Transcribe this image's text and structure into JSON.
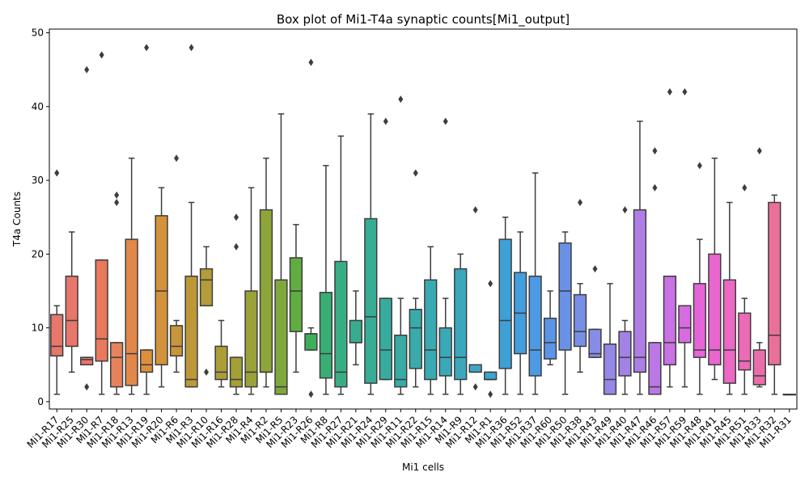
{
  "chart_data": {
    "type": "box",
    "title": "Box plot of Mi1-T4a synaptic counts[Mi1_output]",
    "xlabel": "Mi1 cells",
    "ylabel": "T4a Counts",
    "ylim": [
      -1,
      50.5
    ],
    "yticks": [
      0,
      10,
      20,
      30,
      40,
      50
    ],
    "grid": false,
    "legend": "none",
    "boxes": [
      {
        "category": "Mi1-R17",
        "color": "#e8766b",
        "min": 1,
        "q1": 6.2,
        "median": 7.5,
        "q3": 11.8,
        "max": 13,
        "outliers": [
          31
        ]
      },
      {
        "category": "Mi1-R25",
        "color": "#e8766b",
        "min": 4,
        "q1": 7.5,
        "median": 11,
        "q3": 17,
        "max": 23,
        "outliers": []
      },
      {
        "category": "Mi1-R30",
        "color": "#e8766b",
        "min": 5,
        "q1": 5,
        "median": 5.7,
        "q3": 6,
        "max": 6,
        "outliers": [
          2,
          45
        ]
      },
      {
        "category": "Mi1-R7",
        "color": "#e8795c",
        "min": 1,
        "q1": 5.5,
        "median": 8.5,
        "q3": 19.2,
        "max": 19.2,
        "outliers": [
          47
        ]
      },
      {
        "category": "Mi1-R18",
        "color": "#e7825c",
        "min": 1,
        "q1": 2,
        "median": 6,
        "q3": 8,
        "max": 8,
        "outliers": [
          27,
          28
        ]
      },
      {
        "category": "Mi1-R13",
        "color": "#e2884a",
        "min": 1,
        "q1": 2.2,
        "median": 6.5,
        "q3": 22,
        "max": 33,
        "outliers": []
      },
      {
        "category": "Mi1-R19",
        "color": "#dc8f3d",
        "min": 1,
        "q1": 4,
        "median": 5,
        "q3": 7,
        "max": 7,
        "outliers": [
          48
        ]
      },
      {
        "category": "Mi1-R20",
        "color": "#d3923c",
        "min": 2,
        "q1": 5,
        "median": 15,
        "q3": 25.2,
        "max": 29,
        "outliers": []
      },
      {
        "category": "Mi1-R6",
        "color": "#c7963b",
        "min": 4,
        "q1": 6.2,
        "median": 7.5,
        "q3": 10.3,
        "max": 11,
        "outliers": [
          33
        ]
      },
      {
        "category": "Mi1-R3",
        "color": "#bc9839",
        "min": 2,
        "q1": 2,
        "median": 3,
        "q3": 17,
        "max": 27,
        "outliers": [
          48
        ]
      },
      {
        "category": "Mi1-R10",
        "color": "#b39c39",
        "min": 13,
        "q1": 13,
        "median": 16.5,
        "q3": 18,
        "max": 21,
        "outliers": [
          4
        ]
      },
      {
        "category": "Mi1-R16",
        "color": "#ab9d38",
        "min": 2,
        "q1": 3,
        "median": 4,
        "q3": 7.5,
        "max": 11,
        "outliers": []
      },
      {
        "category": "Mi1-R28",
        "color": "#a49f37",
        "min": 1,
        "q1": 2,
        "median": 3,
        "q3": 6,
        "max": 6,
        "outliers": [
          21,
          25
        ]
      },
      {
        "category": "Mi1-R4",
        "color": "#9aa138",
        "min": 1,
        "q1": 2,
        "median": 4,
        "q3": 15,
        "max": 29,
        "outliers": []
      },
      {
        "category": "Mi1-R2",
        "color": "#8ea539",
        "min": 2,
        "q1": 4,
        "median": 4,
        "q3": 26,
        "max": 33,
        "outliers": []
      },
      {
        "category": "Mi1-R5",
        "color": "#7ea83c",
        "min": 1,
        "q1": 1,
        "median": 2,
        "q3": 16.5,
        "max": 39,
        "outliers": []
      },
      {
        "category": "Mi1-R23",
        "color": "#61ad41",
        "min": 4,
        "q1": 9.5,
        "median": 15,
        "q3": 19.5,
        "max": 24,
        "outliers": []
      },
      {
        "category": "Mi1-R26",
        "color": "#3caf58",
        "min": 7,
        "q1": 7,
        "median": 9.2,
        "q3": 9.2,
        "max": 10,
        "outliers": [
          1,
          46
        ]
      },
      {
        "category": "Mi1-R8",
        "color": "#39ae75",
        "min": 1,
        "q1": 3.2,
        "median": 6.5,
        "q3": 14.8,
        "max": 32,
        "outliers": []
      },
      {
        "category": "Mi1-R27",
        "color": "#38ae84",
        "min": 1,
        "q1": 2,
        "median": 4,
        "q3": 19,
        "max": 36,
        "outliers": []
      },
      {
        "category": "Mi1-R21",
        "color": "#37ad8e",
        "min": 5,
        "q1": 8,
        "median": 8,
        "q3": 11,
        "max": 15,
        "outliers": []
      },
      {
        "category": "Mi1-R24",
        "color": "#37ad96",
        "min": 1,
        "q1": 2.5,
        "median": 11.5,
        "q3": 24.8,
        "max": 39,
        "outliers": []
      },
      {
        "category": "Mi1-R29",
        "color": "#37ac9d",
        "min": 3,
        "q1": 3,
        "median": 7,
        "q3": 14,
        "max": 14,
        "outliers": [
          38
        ]
      },
      {
        "category": "Mi1-R11",
        "color": "#37aba4",
        "min": 1,
        "q1": 2,
        "median": 3,
        "q3": 9,
        "max": 14,
        "outliers": [
          41
        ]
      },
      {
        "category": "Mi1-R22",
        "color": "#38abaa",
        "min": 2,
        "q1": 4.5,
        "median": 10,
        "q3": 12.5,
        "max": 14,
        "outliers": [
          31
        ]
      },
      {
        "category": "Mi1-R15",
        "color": "#39aab1",
        "min": 1,
        "q1": 3,
        "median": 7,
        "q3": 16.5,
        "max": 21,
        "outliers": []
      },
      {
        "category": "Mi1-R14",
        "color": "#3aa9b7",
        "min": 1,
        "q1": 3.5,
        "median": 6,
        "q3": 10,
        "max": 14,
        "outliers": [
          38
        ]
      },
      {
        "category": "Mi1-R9",
        "color": "#3ba8be",
        "min": 1,
        "q1": 3,
        "median": 6,
        "q3": 18,
        "max": 20,
        "outliers": []
      },
      {
        "category": "Mi1-R12",
        "color": "#3ca6c5",
        "min": 4,
        "q1": 4,
        "median": 5,
        "q3": 5,
        "max": 5,
        "outliers": [
          2,
          26
        ]
      },
      {
        "category": "Mi1-R1",
        "color": "#3da4cd",
        "min": 3,
        "q1": 3,
        "median": 3,
        "q3": 4,
        "max": 4,
        "outliers": [
          1,
          16
        ]
      },
      {
        "category": "Mi1-R36",
        "color": "#3ea1d6",
        "min": 1,
        "q1": 4.5,
        "median": 11,
        "q3": 22,
        "max": 25,
        "outliers": []
      },
      {
        "category": "Mi1-R52",
        "color": "#449ddd",
        "min": 1,
        "q1": 6.5,
        "median": 12,
        "q3": 17.5,
        "max": 23,
        "outliers": []
      },
      {
        "category": "Mi1-R37",
        "color": "#4d99e3",
        "min": 1,
        "q1": 3.5,
        "median": 7,
        "q3": 17,
        "max": 31,
        "outliers": []
      },
      {
        "category": "Mi1-R60",
        "color": "#5a95e6",
        "min": 5,
        "q1": 5.8,
        "median": 8,
        "q3": 11.3,
        "max": 15,
        "outliers": []
      },
      {
        "category": "Mi1-R50",
        "color": "#6992e7",
        "min": 1,
        "q1": 7,
        "median": 15,
        "q3": 21.5,
        "max": 23,
        "outliers": []
      },
      {
        "category": "Mi1-R38",
        "color": "#788fe7",
        "min": 4,
        "q1": 7.5,
        "median": 9.5,
        "q3": 14.5,
        "max": 16,
        "outliers": [
          27
        ]
      },
      {
        "category": "Mi1-R43",
        "color": "#878ce6",
        "min": 6,
        "q1": 6,
        "median": 6.5,
        "q3": 9.8,
        "max": 9.8,
        "outliers": [
          18
        ]
      },
      {
        "category": "Mi1-R49",
        "color": "#9587e6",
        "min": 1,
        "q1": 1,
        "median": 3,
        "q3": 7.8,
        "max": 16,
        "outliers": []
      },
      {
        "category": "Mi1-R40",
        "color": "#a282e5",
        "min": 1,
        "q1": 3.5,
        "median": 6,
        "q3": 9.5,
        "max": 11,
        "outliers": [
          26
        ]
      },
      {
        "category": "Mi1-R47",
        "color": "#af7ee5",
        "min": 1,
        "q1": 4,
        "median": 6,
        "q3": 26,
        "max": 38,
        "outliers": []
      },
      {
        "category": "Mi1-R46",
        "color": "#bb78e5",
        "min": 1,
        "q1": 1,
        "median": 2,
        "q3": 8,
        "max": 8,
        "outliers": [
          29,
          34
        ]
      },
      {
        "category": "Mi1-R57",
        "color": "#c972e3",
        "min": 2,
        "q1": 5,
        "median": 8,
        "q3": 17,
        "max": 17,
        "outliers": [
          42
        ]
      },
      {
        "category": "Mi1-R59",
        "color": "#d86be0",
        "min": 2,
        "q1": 8,
        "median": 10,
        "q3": 13,
        "max": 13,
        "outliers": [
          42
        ]
      },
      {
        "category": "Mi1-R48",
        "color": "#e565d9",
        "min": 1,
        "q1": 6,
        "median": 7,
        "q3": 16,
        "max": 22,
        "outliers": [
          32
        ]
      },
      {
        "category": "Mi1-R41",
        "color": "#e966cf",
        "min": 3,
        "q1": 5,
        "median": 7,
        "q3": 20,
        "max": 33,
        "outliers": []
      },
      {
        "category": "Mi1-R45",
        "color": "#eb68c4",
        "min": 1,
        "q1": 2.5,
        "median": 7,
        "q3": 16.5,
        "max": 27,
        "outliers": []
      },
      {
        "category": "Mi1-R51",
        "color": "#eb6bb8",
        "min": 1,
        "q1": 4.3,
        "median": 5.5,
        "q3": 12,
        "max": 14,
        "outliers": [
          29
        ]
      },
      {
        "category": "Mi1-R33",
        "color": "#ea6daa",
        "min": 2,
        "q1": 2.3,
        "median": 3.5,
        "q3": 7,
        "max": 8,
        "outliers": [
          34
        ]
      },
      {
        "category": "Mi1-R32",
        "color": "#e9709a",
        "min": 1,
        "q1": 5,
        "median": 9,
        "q3": 27,
        "max": 28,
        "outliers": []
      },
      {
        "category": "Mi1-R31",
        "color": "#e8738a",
        "min": 1,
        "q1": 1,
        "median": 1,
        "q3": 1,
        "max": 1,
        "outliers": []
      }
    ]
  }
}
